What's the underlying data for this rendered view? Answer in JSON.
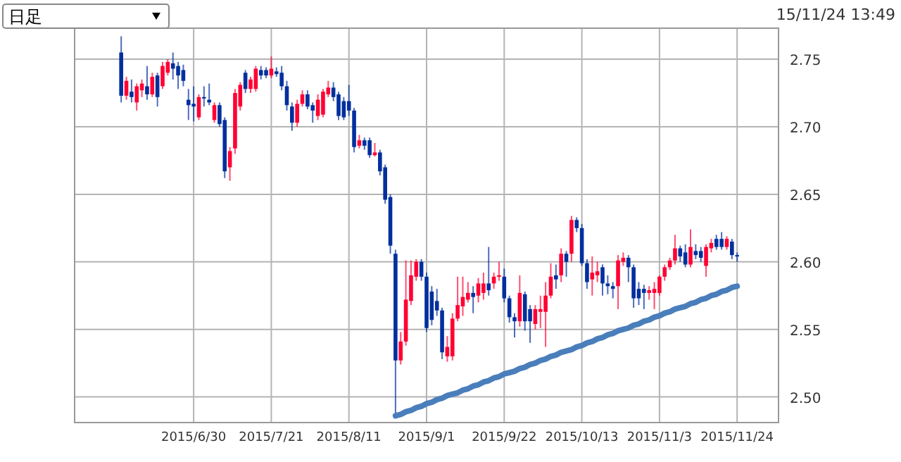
{
  "chart_data": {
    "type": "candlestick",
    "title": "日足",
    "annotations": [
      "15/11/24 13:49"
    ],
    "categories": [
      null,
      null,
      null,
      null,
      null,
      null,
      null,
      null,
      null,
      null,
      null,
      null,
      null,
      null,
      "2015/6/30",
      null,
      null,
      null,
      null,
      null,
      null,
      null,
      null,
      null,
      null,
      null,
      null,
      null,
      null,
      "2015/7/21",
      null,
      null,
      null,
      null,
      null,
      null,
      null,
      null,
      null,
      null,
      null,
      null,
      null,
      null,
      "2015/8/11",
      null,
      null,
      null,
      null,
      null,
      null,
      null,
      null,
      null,
      null,
      null,
      null,
      null,
      null,
      "2015/9/1",
      null,
      null,
      null,
      null,
      null,
      null,
      null,
      null,
      null,
      null,
      null,
      null,
      null,
      null,
      "2015/9/22",
      null,
      null,
      null,
      null,
      null,
      null,
      null,
      null,
      null,
      null,
      null,
      null,
      null,
      null,
      "2015/10/13",
      null,
      null,
      null,
      null,
      null,
      null,
      null,
      null,
      null,
      null,
      null,
      null,
      null,
      null,
      "2015/11/3",
      null,
      null,
      null,
      null,
      null,
      null,
      null,
      null,
      null,
      null,
      null,
      null,
      null,
      null,
      "2015/11/24"
    ],
    "ohlc": [
      [
        2.755,
        2.767,
        2.718,
        2.723
      ],
      [
        2.723,
        2.737,
        2.72,
        2.734
      ],
      [
        2.726,
        2.735,
        2.718,
        2.722
      ],
      [
        2.718,
        2.732,
        2.712,
        2.73
      ],
      [
        2.727,
        2.735,
        2.722,
        2.732
      ],
      [
        2.73,
        2.745,
        2.72,
        2.724
      ],
      [
        2.724,
        2.74,
        2.722,
        2.737
      ],
      [
        2.738,
        2.74,
        2.715,
        2.722
      ],
      [
        2.73,
        2.748,
        2.728,
        2.745
      ],
      [
        2.74,
        2.75,
        2.738,
        2.748
      ],
      [
        2.747,
        2.755,
        2.735,
        2.743
      ],
      [
        2.745,
        2.748,
        2.728,
        2.738
      ],
      [
        2.742,
        2.746,
        2.73,
        2.734
      ],
      [
        2.72,
        2.728,
        2.705,
        2.716
      ],
      [
        2.717,
        2.73,
        2.704,
        2.715
      ],
      [
        2.707,
        2.724,
        2.705,
        2.722
      ],
      [
        2.722,
        2.73,
        2.715,
        2.721
      ],
      [
        2.72,
        2.732,
        2.716,
        2.718
      ],
      [
        2.705,
        2.718,
        2.703,
        2.716
      ],
      [
        2.716,
        2.718,
        2.7,
        2.702
      ],
      [
        2.705,
        2.707,
        2.662,
        2.667
      ],
      [
        2.67,
        2.685,
        2.66,
        2.682
      ],
      [
        2.684,
        2.728,
        2.68,
        2.725
      ],
      [
        2.715,
        2.733,
        2.712,
        2.731
      ],
      [
        2.74,
        2.742,
        2.725,
        2.728
      ],
      [
        2.728,
        2.737,
        2.725,
        2.735
      ],
      [
        2.728,
        2.745,
        2.726,
        2.743
      ],
      [
        2.742,
        2.745,
        2.735,
        2.738
      ],
      [
        2.742,
        2.744,
        2.736,
        2.738
      ],
      [
        2.738,
        2.752,
        2.736,
        2.743
      ],
      [
        2.741,
        2.744,
        2.737,
        2.739
      ],
      [
        2.74,
        2.745,
        2.727,
        2.73
      ],
      [
        2.73,
        2.734,
        2.712,
        2.716
      ],
      [
        2.715,
        2.718,
        2.697,
        2.703
      ],
      [
        2.703,
        2.72,
        2.7,
        2.717
      ],
      [
        2.717,
        2.727,
        2.715,
        2.724
      ],
      [
        2.724,
        2.727,
        2.713,
        2.715
      ],
      [
        2.716,
        2.718,
        2.703,
        2.712
      ],
      [
        2.708,
        2.724,
        2.705,
        2.72
      ],
      [
        2.709,
        2.728,
        2.707,
        2.726
      ],
      [
        2.724,
        2.734,
        2.722,
        2.729
      ],
      [
        2.729,
        2.733,
        2.719,
        2.722
      ],
      [
        2.724,
        2.726,
        2.705,
        2.708
      ],
      [
        2.719,
        2.722,
        2.705,
        2.707
      ],
      [
        2.719,
        2.731,
        2.708,
        2.712
      ],
      [
        2.712,
        2.714,
        2.681,
        2.685
      ],
      [
        2.686,
        2.694,
        2.684,
        2.69
      ],
      [
        2.69,
        2.692,
        2.683,
        2.686
      ],
      [
        2.69,
        2.692,
        2.677,
        2.679
      ],
      [
        2.679,
        2.688,
        2.678,
        2.681
      ],
      [
        2.681,
        2.683,
        2.664,
        2.667
      ],
      [
        2.67,
        2.672,
        2.643,
        2.646
      ],
      [
        2.648,
        2.65,
        2.606,
        2.612
      ],
      [
        2.606,
        2.609,
        2.487,
        2.527
      ],
      [
        2.527,
        2.548,
        2.524,
        2.541
      ],
      [
        2.541,
        2.601,
        2.538,
        2.572
      ],
      [
        2.571,
        2.601,
        2.568,
        2.59
      ],
      [
        2.589,
        2.602,
        2.586,
        2.6
      ],
      [
        2.6,
        2.602,
        2.586,
        2.589
      ],
      [
        2.589,
        2.592,
        2.548,
        2.551
      ],
      [
        2.578,
        2.582,
        2.553,
        2.557
      ],
      [
        2.571,
        2.58,
        2.56,
        2.564
      ],
      [
        2.564,
        2.566,
        2.528,
        2.533
      ],
      [
        2.53,
        2.545,
        2.526,
        2.537
      ],
      [
        2.53,
        2.562,
        2.527,
        2.558
      ],
      [
        2.558,
        2.589,
        2.556,
        2.568
      ],
      [
        2.567,
        2.589,
        2.56,
        2.574
      ],
      [
        2.572,
        2.585,
        2.57,
        2.577
      ],
      [
        2.577,
        2.582,
        2.562,
        2.574
      ],
      [
        2.575,
        2.588,
        2.57,
        2.584
      ],
      [
        2.577,
        2.592,
        2.572,
        2.584
      ],
      [
        2.584,
        2.611,
        2.575,
        2.579
      ],
      [
        2.584,
        2.592,
        2.58,
        2.589
      ],
      [
        2.589,
        2.6,
        2.586,
        2.59
      ],
      [
        2.589,
        2.595,
        2.57,
        2.573
      ],
      [
        2.573,
        2.575,
        2.555,
        2.559
      ],
      [
        2.559,
        2.562,
        2.544,
        2.556
      ],
      [
        2.556,
        2.59,
        2.552,
        2.577
      ],
      [
        2.576,
        2.578,
        2.549,
        2.556
      ],
      [
        2.565,
        2.568,
        2.54,
        2.556
      ],
      [
        2.554,
        2.568,
        2.55,
        2.565
      ],
      [
        2.563,
        2.575,
        2.551,
        2.565
      ],
      [
        2.563,
        2.585,
        2.537,
        2.575
      ],
      [
        2.575,
        2.599,
        2.573,
        2.589
      ],
      [
        2.59,
        2.598,
        2.58,
        2.587
      ],
      [
        2.59,
        2.61,
        2.585,
        2.606
      ],
      [
        2.606,
        2.608,
        2.589,
        2.6
      ],
      [
        2.606,
        2.634,
        2.6,
        2.631
      ],
      [
        2.631,
        2.633,
        2.622,
        2.625
      ],
      [
        2.625,
        2.628,
        2.597,
        2.599
      ],
      [
        2.599,
        2.602,
        2.58,
        2.585
      ],
      [
        2.587,
        2.604,
        2.575,
        2.592
      ],
      [
        2.59,
        2.6,
        2.585,
        2.593
      ],
      [
        2.596,
        2.598,
        2.575,
        2.584
      ],
      [
        2.584,
        2.59,
        2.576,
        2.582
      ],
      [
        2.582,
        2.585,
        2.573,
        2.58
      ],
      [
        2.582,
        2.605,
        2.565,
        2.601
      ],
      [
        2.6,
        2.607,
        2.597,
        2.603
      ],
      [
        2.603,
        2.605,
        2.585,
        2.596
      ],
      [
        2.596,
        2.598,
        2.566,
        2.573
      ],
      [
        2.58,
        2.585,
        2.568,
        2.573
      ],
      [
        2.58,
        2.583,
        2.565,
        2.577
      ],
      [
        2.577,
        2.582,
        2.572,
        2.579
      ],
      [
        2.577,
        2.585,
        2.565,
        2.58
      ],
      [
        2.577,
        2.59,
        2.575,
        2.589
      ],
      [
        2.589,
        2.598,
        2.586,
        2.596
      ],
      [
        2.596,
        2.603,
        2.594,
        2.601
      ],
      [
        2.601,
        2.62,
        2.598,
        2.61
      ],
      [
        2.61,
        2.612,
        2.6,
        2.604
      ],
      [
        2.607,
        2.613,
        2.596,
        2.598
      ],
      [
        2.598,
        2.624,
        2.596,
        2.611
      ],
      [
        2.608,
        2.613,
        2.602,
        2.605
      ],
      [
        2.608,
        2.611,
        2.6,
        2.603
      ],
      [
        2.597,
        2.613,
        2.589,
        2.611
      ],
      [
        2.61,
        2.617,
        2.607,
        2.614
      ],
      [
        2.617,
        2.62,
        2.609,
        2.611
      ],
      [
        2.617,
        2.622,
        2.609,
        2.611
      ],
      [
        2.611,
        2.619,
        2.609,
        2.617
      ],
      [
        2.615,
        2.617,
        2.602,
        2.605
      ],
      [
        2.605,
        2.607,
        2.6,
        2.604
      ]
    ],
    "colors": [
      "#002f9e",
      "#ff0033",
      "#002f9e",
      "#ff0033",
      "#ff0033",
      "#002f9e",
      "#ff0033",
      "#002f9e",
      "#ff0033",
      "#ff0033",
      "#002f9e",
      "#002f9e",
      "#002f9e",
      "#002f9e",
      "#002f9e",
      "#ff0033",
      "#002f9e",
      "#002f9e",
      "#ff0033",
      "#002f9e",
      "#002f9e",
      "#ff0033",
      "#ff0033",
      "#ff0033",
      "#002f9e",
      "#ff0033",
      "#ff0033",
      "#002f9e",
      "#002f9e",
      "#ff0033",
      "#002f9e",
      "#002f9e",
      "#002f9e",
      "#002f9e",
      "#ff0033",
      "#ff0033",
      "#002f9e",
      "#002f9e",
      "#ff0033",
      "#ff0033",
      "#ff0033",
      "#002f9e",
      "#002f9e",
      "#002f9e",
      "#002f9e",
      "#002f9e",
      "#ff0033",
      "#002f9e",
      "#002f9e",
      "#ff0033",
      "#002f9e",
      "#002f9e",
      "#002f9e",
      "#002f9e",
      "#ff0033",
      "#ff0033",
      "#ff0033",
      "#ff0033",
      "#002f9e",
      "#002f9e",
      "#002f9e",
      "#002f9e",
      "#002f9e",
      "#ff0033",
      "#ff0033",
      "#ff0033",
      "#ff0033",
      "#ff0033",
      "#002f9e",
      "#ff0033",
      "#ff0033",
      "#002f9e",
      "#ff0033",
      "#ff0033",
      "#002f9e",
      "#002f9e",
      "#002f9e",
      "#ff0033",
      "#002f9e",
      "#002f9e",
      "#ff0033",
      "#ff0033",
      "#ff0033",
      "#ff0033",
      "#002f9e",
      "#ff0033",
      "#002f9e",
      "#ff0033",
      "#002f9e",
      "#002f9e",
      "#002f9e",
      "#ff0033",
      "#ff0033",
      "#002f9e",
      "#002f9e",
      "#002f9e",
      "#ff0033",
      "#ff0033",
      "#002f9e",
      "#002f9e",
      "#002f9e",
      "#002f9e",
      "#ff0033",
      "#ff0033",
      "#ff0033",
      "#ff0033",
      "#ff0033",
      "#ff0033",
      "#002f9e",
      "#002f9e",
      "#ff0033",
      "#002f9e",
      "#002f9e",
      "#ff0033",
      "#ff0033",
      "#002f9e",
      "#002f9e",
      "#ff0033",
      "#002f9e",
      "#002f9e"
    ],
    "series": [
      {
        "type": "line",
        "values": [
          null,
          null,
          null,
          null,
          null,
          null,
          null,
          null,
          null,
          null,
          null,
          null,
          null,
          null,
          null,
          null,
          null,
          null,
          null,
          null,
          null,
          null,
          null,
          null,
          null,
          null,
          null,
          null,
          null,
          null,
          null,
          null,
          null,
          null,
          null,
          null,
          null,
          null,
          null,
          null,
          null,
          null,
          null,
          null,
          null,
          null,
          null,
          null,
          null,
          null,
          null,
          null,
          null,
          2.486,
          2.487,
          2.489,
          2.49,
          2.492,
          2.493,
          2.495,
          2.496,
          2.498,
          2.499,
          2.501,
          2.502,
          2.503,
          2.505,
          2.506,
          2.508,
          2.509,
          2.511,
          2.512,
          2.514,
          2.515,
          2.517,
          2.518,
          2.519,
          2.521,
          2.522,
          2.524,
          2.525,
          2.527,
          2.528,
          2.53,
          2.531,
          2.533,
          2.534,
          2.535,
          2.537,
          2.538,
          2.54,
          2.541,
          2.543,
          2.544,
          2.546,
          2.547,
          2.549,
          2.55,
          2.551,
          2.553,
          2.554,
          2.556,
          2.557,
          2.559,
          2.56,
          2.562,
          2.563,
          2.565,
          2.566,
          2.567,
          2.569,
          2.57,
          2.572,
          2.573,
          2.575,
          2.576,
          2.578,
          2.579,
          2.581,
          2.582
        ],
        "color": "#4a7ebb"
      }
    ],
    "ylim": [
      2.481,
      2.773
    ],
    "yticks": [
      {
        "value": 2.5,
        "label": "2.50"
      },
      {
        "value": 2.55,
        "label": "2.55"
      },
      {
        "value": 2.6,
        "label": "2.60"
      },
      {
        "value": 2.65,
        "label": "2.65"
      },
      {
        "value": 2.7,
        "label": "2.70"
      },
      {
        "value": 2.75,
        "label": "2.75"
      }
    ],
    "grid": true
  }
}
